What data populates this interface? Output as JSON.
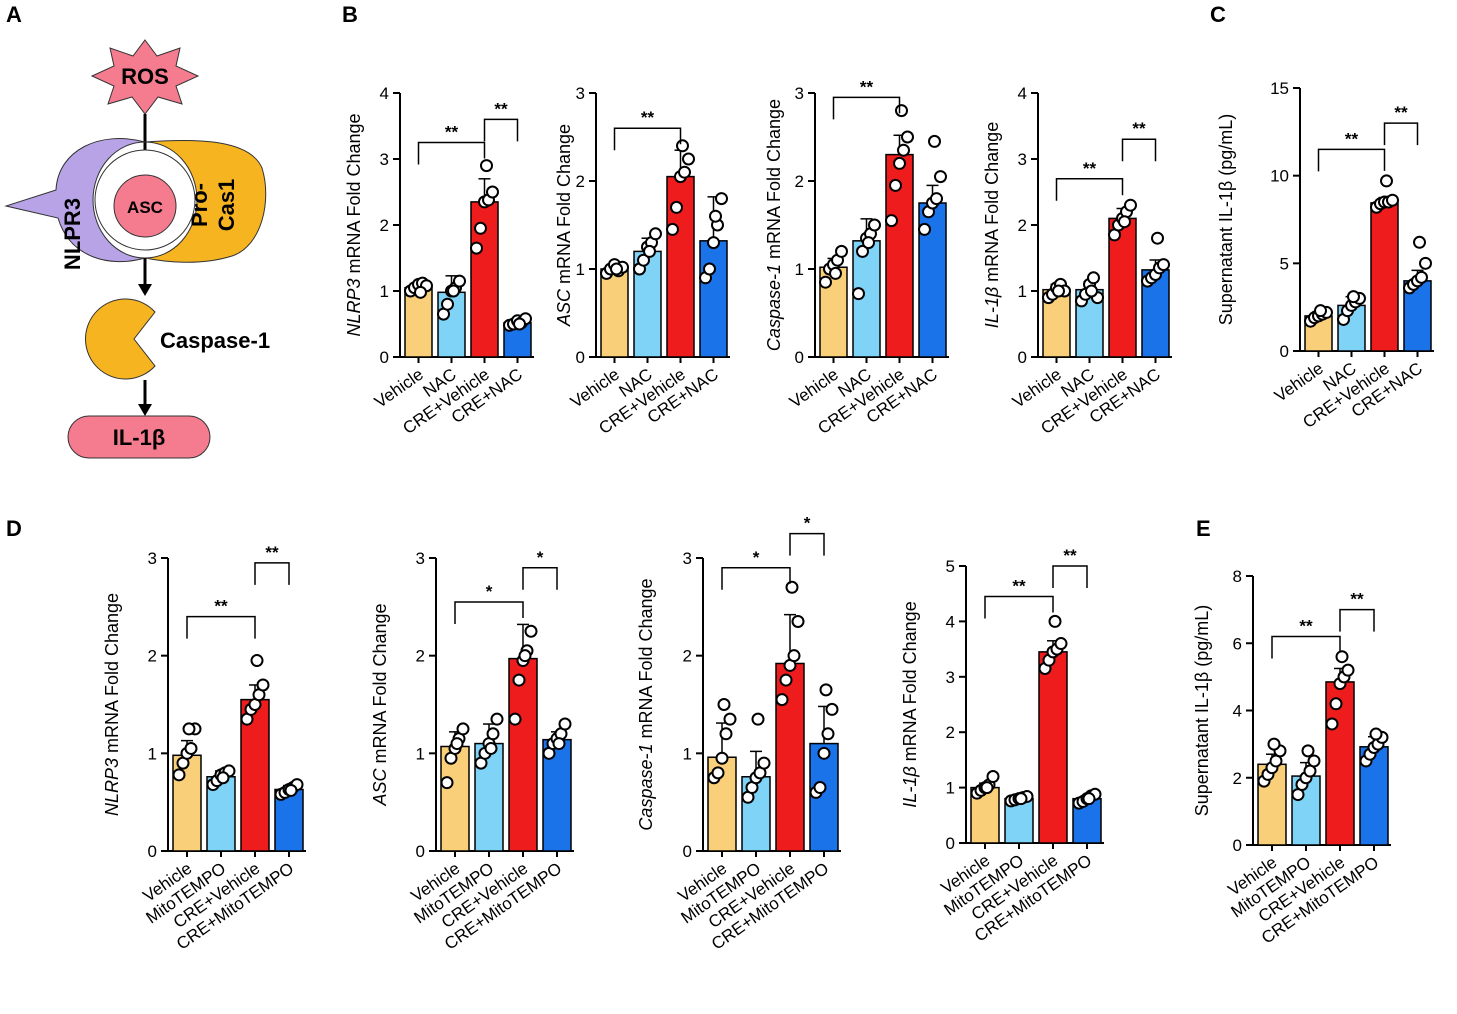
{
  "panel_labels": [
    "A",
    "B",
    "C",
    "D",
    "E"
  ],
  "pathway": {
    "ros": "ROS",
    "nlrp3": "NLPR3",
    "asc": "ASC",
    "procas1_line1": "Pro-",
    "procas1_line2": "Cas1",
    "caspase1": "Caspase-1",
    "il1b": "IL-1β",
    "colors": {
      "ros": "#f47c8e",
      "nlrp3": "#b7a3e6",
      "asc": "#f47c8e",
      "procas": "#f6b520",
      "caspase": "#f6b520",
      "il1b": "#f47c8e"
    }
  },
  "colors": {
    "vehicle": "#f9cf7a",
    "treat": "#7fd3f7",
    "cre_vehicle": "#ee1c1c",
    "cre_treat": "#1a73e8"
  },
  "chart_data": [
    {
      "id": "B1",
      "type": "bar",
      "panel": "B",
      "ylabel_italic": "NLRP3",
      "ylabel_rest": " mRNA Fold Change",
      "categories": [
        "Vehicle",
        "NAC",
        "CRE+Vehicle",
        "CRE+NAC"
      ],
      "values": [
        1.05,
        0.98,
        2.35,
        0.52
      ],
      "errors": [
        0.08,
        0.25,
        0.35,
        0.06
      ],
      "points": [
        [
          1.0,
          1.05,
          1.1,
          1.12,
          1.08,
          0.98
        ],
        [
          0.65,
          0.8,
          1.0,
          1.05,
          1.15,
          1.0
        ],
        [
          1.65,
          1.95,
          2.35,
          2.38,
          2.5,
          2.9
        ],
        [
          0.48,
          0.5,
          0.55,
          0.52,
          0.58,
          0.5
        ]
      ],
      "ylim": [
        0,
        4
      ],
      "yticks": [
        "0",
        "1",
        "2",
        "3",
        "4"
      ],
      "sig": [
        {
          "from": 0,
          "to": 2,
          "y": 3.25,
          "label": "**"
        },
        {
          "from": 2,
          "to": 3,
          "y": 3.6,
          "label": "**"
        }
      ]
    },
    {
      "id": "B2",
      "type": "bar",
      "panel": "B",
      "ylabel_italic": "ASC",
      "ylabel_rest": " mRNA Fold Change",
      "categories": [
        "Vehicle",
        "NAC",
        "CRE+Vehicle",
        "CRE+NAC"
      ],
      "values": [
        1.0,
        1.2,
        2.05,
        1.32
      ],
      "errors": [
        0.06,
        0.15,
        0.3,
        0.5
      ],
      "points": [
        [
          0.95,
          1.0,
          1.05,
          0.98,
          1.02,
          1.0
        ],
        [
          1.0,
          1.1,
          1.25,
          1.3,
          1.4,
          1.2
        ],
        [
          1.45,
          1.7,
          2.05,
          2.1,
          2.25,
          2.4
        ],
        [
          0.9,
          1.0,
          1.3,
          1.5,
          1.8,
          1.6
        ]
      ],
      "ylim": [
        0,
        3
      ],
      "yticks": [
        "0",
        "1",
        "2",
        "3"
      ],
      "sig": [
        {
          "from": 0,
          "to": 2,
          "y": 2.6,
          "label": "**"
        }
      ]
    },
    {
      "id": "B3",
      "type": "bar",
      "panel": "B",
      "ylabel_italic": "Caspase-1",
      "ylabel_rest": " mRNA Fold Change",
      "categories": [
        "Vehicle",
        "NAC",
        "CRE+Vehicle",
        "CRE+NAC"
      ],
      "values": [
        1.02,
        1.32,
        2.3,
        1.75
      ],
      "errors": [
        0.1,
        0.25,
        0.22,
        0.2
      ],
      "points": [
        [
          0.85,
          1.0,
          1.05,
          1.1,
          1.2,
          0.95
        ],
        [
          0.72,
          1.2,
          1.35,
          1.4,
          1.5,
          1.3
        ],
        [
          1.55,
          1.95,
          2.2,
          2.35,
          2.5,
          2.8
        ],
        [
          1.45,
          1.65,
          1.75,
          1.8,
          2.05,
          2.45
        ]
      ],
      "ylim": [
        0,
        3
      ],
      "yticks": [
        "0",
        "1",
        "2",
        "3"
      ],
      "sig": [
        {
          "from": 0,
          "to": 2,
          "y": 2.95,
          "label": "**"
        }
      ]
    },
    {
      "id": "B4",
      "type": "bar",
      "panel": "B",
      "ylabel_italic": "IL-1β",
      "ylabel_rest": " mRNA Fold Change",
      "categories": [
        "Vehicle",
        "NAC",
        "CRE+Vehicle",
        "CRE+NAC"
      ],
      "values": [
        1.02,
        1.02,
        2.1,
        1.32
      ],
      "errors": [
        0.08,
        0.12,
        0.15,
        0.15
      ],
      "points": [
        [
          0.9,
          0.95,
          1.05,
          1.1,
          1.0,
          1.0
        ],
        [
          0.85,
          0.95,
          1.1,
          1.2,
          0.9,
          1.0
        ],
        [
          1.85,
          2.0,
          2.1,
          2.2,
          2.3,
          2.05
        ],
        [
          1.15,
          1.2,
          1.25,
          1.35,
          1.4,
          1.8
        ]
      ],
      "ylim": [
        0,
        4
      ],
      "yticks": [
        "0",
        "1",
        "2",
        "3",
        "4"
      ],
      "sig": [
        {
          "from": 0,
          "to": 2,
          "y": 2.7,
          "label": "**"
        },
        {
          "from": 2,
          "to": 3,
          "y": 3.3,
          "label": "**"
        }
      ]
    },
    {
      "id": "C",
      "type": "bar",
      "panel": "C",
      "ylabel_italic": "",
      "ylabel_rest": "Supernatant IL-1β (pg/mL)",
      "categories": [
        "Vehicle",
        "NAC",
        "CRE+Vehicle",
        "CRE+NAC"
      ],
      "values": [
        2.0,
        2.6,
        8.45,
        4.0
      ],
      "errors": [
        0.25,
        0.5,
        0.3,
        0.6
      ],
      "points": [
        [
          1.7,
          1.9,
          2.0,
          2.1,
          2.2,
          2.3
        ],
        [
          1.8,
          2.3,
          2.6,
          2.8,
          3.0,
          3.1
        ],
        [
          8.2,
          8.4,
          8.5,
          8.5,
          8.6,
          9.7
        ],
        [
          3.6,
          3.8,
          4.0,
          4.2,
          5.0,
          6.2
        ]
      ],
      "ylim": [
        0,
        15
      ],
      "yticks": [
        "0",
        "5",
        "10",
        "15"
      ],
      "sig": [
        {
          "from": 0,
          "to": 2,
          "y": 11.5,
          "label": "**"
        },
        {
          "from": 2,
          "to": 3,
          "y": 13.0,
          "label": "**"
        }
      ]
    },
    {
      "id": "D1",
      "type": "bar",
      "panel": "D",
      "ylabel_italic": "NLRP3",
      "ylabel_rest": " mRNA Fold Change",
      "categories": [
        "Vehicle",
        "MitoTEMPO",
        "CRE+Vehicle",
        "CRE+MitoTEMPO"
      ],
      "values": [
        0.98,
        0.76,
        1.55,
        0.63
      ],
      "errors": [
        0.15,
        0.06,
        0.15,
        0.04
      ],
      "points": [
        [
          0.78,
          0.9,
          1.0,
          1.05,
          1.25,
          1.25
        ],
        [
          0.68,
          0.72,
          0.78,
          0.8,
          0.82,
          0.75
        ],
        [
          1.35,
          1.45,
          1.5,
          1.6,
          1.7,
          1.95
        ],
        [
          0.58,
          0.6,
          0.63,
          0.65,
          0.68,
          0.62
        ]
      ],
      "ylim": [
        0,
        3
      ],
      "yticks": [
        "0",
        "1",
        "2",
        "3"
      ],
      "sig": [
        {
          "from": 0,
          "to": 2,
          "y": 2.4,
          "label": "**"
        },
        {
          "from": 2,
          "to": 3,
          "y": 2.95,
          "label": "**"
        }
      ]
    },
    {
      "id": "D2",
      "type": "bar",
      "panel": "D",
      "ylabel_italic": "ASC",
      "ylabel_rest": " mRNA Fold Change",
      "categories": [
        "Vehicle",
        "MitoTEMPO",
        "CRE+Vehicle",
        "CRE+MitoTEMPO"
      ],
      "values": [
        1.07,
        1.1,
        1.97,
        1.14
      ],
      "errors": [
        0.15,
        0.2,
        0.35,
        0.08
      ],
      "points": [
        [
          0.7,
          0.95,
          1.05,
          1.15,
          1.25,
          1.1
        ],
        [
          0.9,
          1.0,
          1.1,
          1.2,
          1.35,
          1.05
        ],
        [
          1.35,
          1.75,
          1.95,
          2.05,
          2.25,
          2.0
        ],
        [
          1.0,
          1.1,
          1.15,
          1.2,
          1.3,
          1.1
        ]
      ],
      "ylim": [
        0,
        3
      ],
      "yticks": [
        "0",
        "1",
        "2",
        "3"
      ],
      "sig": [
        {
          "from": 0,
          "to": 2,
          "y": 2.55,
          "label": "*"
        },
        {
          "from": 2,
          "to": 3,
          "y": 2.9,
          "label": "*"
        }
      ]
    },
    {
      "id": "D3",
      "type": "bar",
      "panel": "D",
      "ylabel_italic": "Caspase-1",
      "ylabel_rest": " mRNA Fold Change",
      "categories": [
        "Vehicle",
        "MitoTEMPO",
        "CRE+Vehicle",
        "CRE+MitoTEMPO"
      ],
      "values": [
        0.96,
        0.76,
        1.92,
        1.1
      ],
      "errors": [
        0.35,
        0.26,
        0.5,
        0.38
      ],
      "points": [
        [
          0.75,
          0.8,
          0.95,
          1.2,
          1.35,
          1.5
        ],
        [
          0.55,
          0.65,
          0.75,
          0.8,
          0.9,
          1.35
        ],
        [
          1.55,
          1.75,
          1.9,
          2.0,
          2.35,
          2.7
        ],
        [
          0.6,
          0.65,
          1.0,
          1.2,
          1.45,
          1.65
        ]
      ],
      "ylim": [
        0,
        3
      ],
      "yticks": [
        "0",
        "1",
        "2",
        "3"
      ],
      "sig": [
        {
          "from": 0,
          "to": 2,
          "y": 2.9,
          "label": "*"
        },
        {
          "from": 2,
          "to": 3,
          "y": 3.25,
          "label": "*"
        }
      ]
    },
    {
      "id": "D4",
      "type": "bar",
      "panel": "D",
      "ylabel_italic": "IL-1β",
      "ylabel_rest": " mRNA Fold Change",
      "categories": [
        "Vehicle",
        "MitoTEMPO",
        "CRE+Vehicle",
        "CRE+MitoTEMPO"
      ],
      "values": [
        1.0,
        0.8,
        3.45,
        0.8
      ],
      "errors": [
        0.08,
        0.05,
        0.2,
        0.05
      ],
      "points": [
        [
          0.9,
          0.95,
          1.0,
          1.05,
          1.2,
          1.0
        ],
        [
          0.76,
          0.78,
          0.8,
          0.82,
          0.84,
          0.8
        ],
        [
          3.15,
          3.3,
          3.45,
          3.5,
          3.6,
          4.0
        ],
        [
          0.72,
          0.75,
          0.8,
          0.85,
          0.88,
          0.8
        ]
      ],
      "ylim": [
        0,
        5
      ],
      "yticks": [
        "0",
        "1",
        "2",
        "3",
        "4",
        "5"
      ],
      "sig": [
        {
          "from": 0,
          "to": 2,
          "y": 4.45,
          "label": "**"
        },
        {
          "from": 2,
          "to": 3,
          "y": 5.0,
          "label": "**"
        }
      ]
    },
    {
      "id": "E",
      "type": "bar",
      "panel": "E",
      "ylabel_italic": "",
      "ylabel_rest": "Supernatant IL-1β (pg/mL)",
      "categories": [
        "Vehicle",
        "MitoTEMPO",
        "CRE+Vehicle",
        "CRE+MitoTEMPO"
      ],
      "values": [
        2.4,
        2.05,
        4.85,
        2.92
      ],
      "errors": [
        0.3,
        0.4,
        0.4,
        0.3
      ],
      "points": [
        [
          1.9,
          2.1,
          2.3,
          2.5,
          2.8,
          3.0
        ],
        [
          1.5,
          1.8,
          2.0,
          2.2,
          2.5,
          2.8
        ],
        [
          3.6,
          4.2,
          4.8,
          5.0,
          5.2,
          5.6
        ],
        [
          2.5,
          2.7,
          2.9,
          3.0,
          3.2,
          3.3
        ]
      ],
      "ylim": [
        0,
        8
      ],
      "yticks": [
        "0",
        "2",
        "4",
        "6",
        "8"
      ],
      "sig": [
        {
          "from": 0,
          "to": 2,
          "y": 6.2,
          "label": "**"
        },
        {
          "from": 2,
          "to": 3,
          "y": 7.0,
          "label": "**"
        }
      ]
    }
  ]
}
